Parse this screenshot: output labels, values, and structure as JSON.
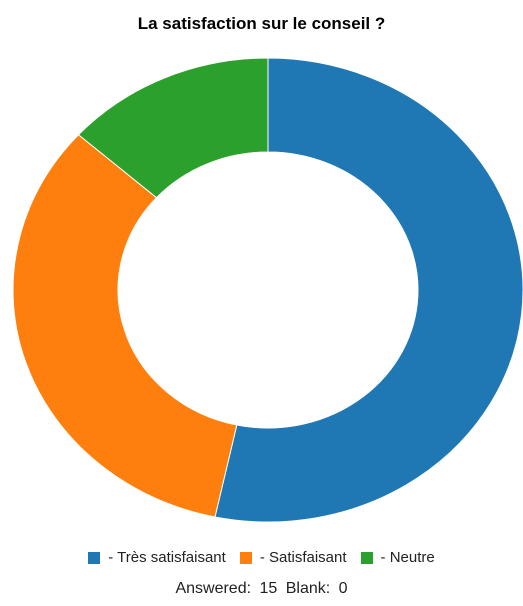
{
  "chart_data": {
    "type": "pie",
    "title": "La satisfaction sur le conseil ?",
    "donut": true,
    "categories": [
      "- Très satisfaisant",
      "- Satisfaisant",
      "- Neutre"
    ],
    "values": [
      8,
      5,
      2
    ],
    "colors": [
      "#1f77b4",
      "#ff7f0e",
      "#2ca02c"
    ],
    "legend_position": "bottom"
  },
  "footer": {
    "answered_label": "Answered:",
    "answered_value": "15",
    "blank_label": "Blank:",
    "blank_value": "0"
  }
}
